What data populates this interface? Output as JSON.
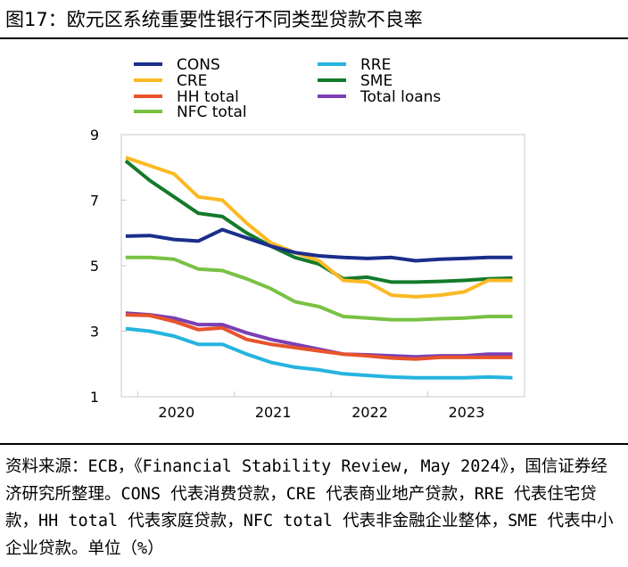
{
  "figure": {
    "title": "图17：欧元区系统重要性银行不同类型贷款不良率",
    "footnote": "资料来源：ECB，《Financial Stability Review, May 2024》，国信证券经济研究所整理。CONS 代表消费贷款，CRE 代表商业地产贷款，RRE 代表住宅贷款，HH total 代表家庭贷款，NFC total 代表非金融企业整体，SME 代表中小企业贷款。单位（%）"
  },
  "chart_data": {
    "type": "line",
    "title": "",
    "xlabel": "",
    "ylabel": "",
    "x_tick_labels": [
      "2020",
      "2021",
      "2022",
      "2023"
    ],
    "x_ticks": [
      2020.0,
      2021.0,
      2022.0,
      2023.0
    ],
    "xlim": [
      2019.83,
      2024.0
    ],
    "ylim": [
      1,
      9
    ],
    "y_ticks": [
      1,
      3,
      5,
      7,
      9
    ],
    "grid": false,
    "legend": "top",
    "x": [
      2019.875,
      2020.125,
      2020.375,
      2020.625,
      2020.875,
      2021.125,
      2021.375,
      2021.625,
      2021.875,
      2022.125,
      2022.375,
      2022.625,
      2022.875,
      2023.125,
      2023.375,
      2023.625,
      2023.875
    ],
    "series": [
      {
        "name": "CONS",
        "color": "#1a2e8a",
        "values": [
          5.9,
          5.92,
          5.8,
          5.75,
          6.1,
          5.85,
          5.6,
          5.4,
          5.3,
          5.25,
          5.22,
          5.25,
          5.15,
          5.2,
          5.22,
          5.25,
          5.25
        ]
      },
      {
        "name": "RRE",
        "color": "#26b4df",
        "values": [
          3.08,
          3.0,
          2.85,
          2.6,
          2.6,
          2.3,
          2.05,
          1.9,
          1.82,
          1.7,
          1.65,
          1.6,
          1.58,
          1.58,
          1.58,
          1.6,
          1.58
        ]
      },
      {
        "name": "CRE",
        "color": "#fbb924",
        "values": [
          8.3,
          8.05,
          7.8,
          7.1,
          7.0,
          6.3,
          5.7,
          5.4,
          5.15,
          4.55,
          4.5,
          4.1,
          4.05,
          4.1,
          4.2,
          4.55,
          4.55
        ]
      },
      {
        "name": "SME",
        "color": "#137a2a",
        "values": [
          8.2,
          7.6,
          7.1,
          6.6,
          6.5,
          6.0,
          5.6,
          5.25,
          5.05,
          4.6,
          4.65,
          4.5,
          4.5,
          4.52,
          4.55,
          4.6,
          4.62
        ]
      },
      {
        "name": "HH total",
        "color": "#e8542a",
        "values": [
          3.5,
          3.48,
          3.3,
          3.05,
          3.1,
          2.75,
          2.6,
          2.5,
          2.4,
          2.3,
          2.25,
          2.18,
          2.15,
          2.2,
          2.2,
          2.2,
          2.2
        ]
      },
      {
        "name": "Total loans",
        "color": "#7b3fb5",
        "values": [
          3.55,
          3.5,
          3.4,
          3.2,
          3.2,
          2.95,
          2.75,
          2.6,
          2.45,
          2.3,
          2.28,
          2.25,
          2.22,
          2.25,
          2.25,
          2.3,
          2.3
        ]
      },
      {
        "name": "NFC total",
        "color": "#79c143",
        "values": [
          5.25,
          5.25,
          5.2,
          4.9,
          4.85,
          4.6,
          4.3,
          3.9,
          3.75,
          3.45,
          3.4,
          3.35,
          3.35,
          3.38,
          3.4,
          3.45,
          3.45
        ]
      }
    ]
  }
}
